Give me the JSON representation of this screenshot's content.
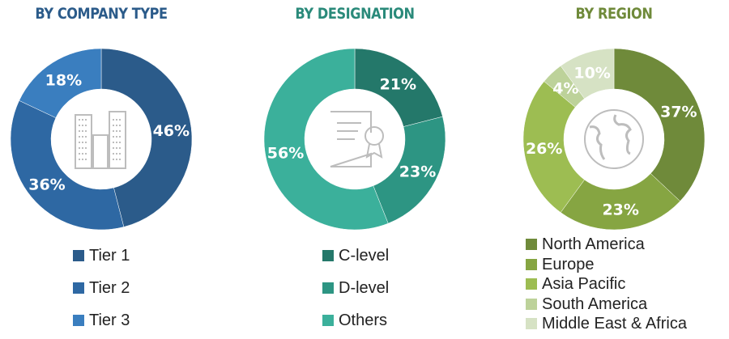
{
  "chart_data": [
    {
      "type": "pie",
      "title": "BY COMPANY TYPE",
      "title_color": "#2b5b8a",
      "donut": true,
      "center_icon": "buildings-icon",
      "categories": [
        "Tier 1",
        "Tier 2",
        "Tier 3"
      ],
      "values": [
        46,
        36,
        18
      ],
      "labels": [
        "46%",
        "36%",
        "18%"
      ],
      "colors": [
        "#2b5b8a",
        "#2e68a3",
        "#3a7ebf"
      ]
    },
    {
      "type": "pie",
      "title": "BY DESIGNATION",
      "title_color": "#2a8a7a",
      "donut": true,
      "center_icon": "certificate-icon",
      "categories": [
        "C-level",
        "D-level",
        "Others"
      ],
      "values": [
        21,
        23,
        56
      ],
      "labels": [
        "21%",
        "23%",
        "56%"
      ],
      "colors": [
        "#24786a",
        "#2d9583",
        "#3bb09b"
      ]
    },
    {
      "type": "pie",
      "title": "BY REGION",
      "title_color": "#6f8a3a",
      "donut": true,
      "center_icon": "globe-icon",
      "categories": [
        "North America",
        "Europe",
        "Asia Pacific",
        "South America",
        "Middle East & Africa"
      ],
      "values": [
        37,
        23,
        26,
        4,
        10
      ],
      "labels": [
        "37%",
        "23%",
        "26%",
        "4%",
        "10%"
      ],
      "colors": [
        "#6f8a3a",
        "#86a542",
        "#9dbd52",
        "#bdd29a",
        "#d6e2c4"
      ]
    }
  ]
}
